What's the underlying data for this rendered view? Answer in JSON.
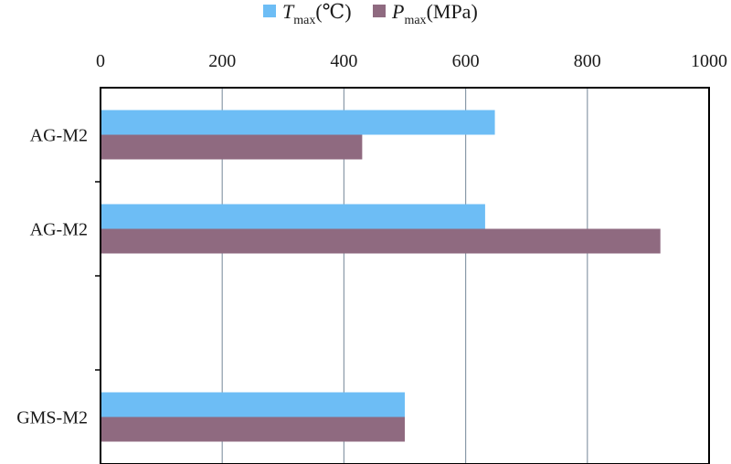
{
  "chart_data": {
    "type": "bar",
    "orientation": "horizontal",
    "categories": [
      "AG-M2",
      "AG-M2",
      "",
      "GMS-M2"
    ],
    "series": [
      {
        "name": "T_max(℃)",
        "symbol": "T",
        "subscript": "max",
        "unit": "(℃)",
        "color": "#6dbdf5",
        "values": [
          648,
          632,
          null,
          500
        ]
      },
      {
        "name": "P_max(MPa)",
        "symbol": "P",
        "subscript": "max",
        "unit": "(MPa)",
        "color": "#8f6a80",
        "values": [
          430,
          920,
          null,
          500
        ]
      }
    ],
    "xlim": [
      0,
      1000
    ],
    "xticks": [
      "0",
      "200",
      "400",
      "600",
      "800",
      "1000"
    ],
    "xaxis_position": "top",
    "grid": true,
    "legend_position": "top-center",
    "title": "",
    "xlabel": "",
    "ylabel": ""
  }
}
